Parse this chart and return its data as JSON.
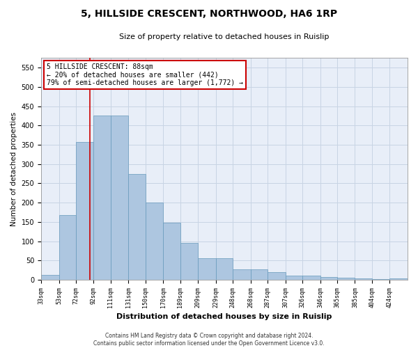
{
  "title": "5, HILLSIDE CRESCENT, NORTHWOOD, HA6 1RP",
  "subtitle": "Size of property relative to detached houses in Ruislip",
  "xlabel": "Distribution of detached houses by size in Ruislip",
  "ylabel": "Number of detached properties",
  "footer_line1": "Contains HM Land Registry data © Crown copyright and database right 2024.",
  "footer_line2": "Contains public sector information licensed under the Open Government Licence v3.0.",
  "categories": [
    "33sqm",
    "53sqm",
    "72sqm",
    "92sqm",
    "111sqm",
    "131sqm",
    "150sqm",
    "170sqm",
    "189sqm",
    "209sqm",
    "229sqm",
    "248sqm",
    "268sqm",
    "287sqm",
    "307sqm",
    "326sqm",
    "346sqm",
    "365sqm",
    "385sqm",
    "404sqm",
    "424sqm"
  ],
  "values": [
    12,
    168,
    357,
    425,
    425,
    275,
    200,
    148,
    96,
    55,
    55,
    27,
    27,
    20,
    11,
    11,
    7,
    5,
    4,
    2,
    4
  ],
  "bar_color": "#adc6e0",
  "bar_edge_color": "#6699bb",
  "grid_color": "#c8d4e4",
  "annotation_line1": "5 HILLSIDE CRESCENT: 88sqm",
  "annotation_line2": "← 20% of detached houses are smaller (442)",
  "annotation_line3": "79% of semi-detached houses are larger (1,772) →",
  "annotation_box_color": "#ffffff",
  "annotation_border_color": "#cc0000",
  "property_line_x": 88,
  "property_line_color": "#cc0000",
  "ylim_max": 575,
  "bin_edges": [
    33,
    53,
    72,
    92,
    111,
    131,
    150,
    170,
    189,
    209,
    229,
    248,
    268,
    287,
    307,
    326,
    346,
    365,
    385,
    404,
    424,
    444
  ],
  "yticks": [
    0,
    50,
    100,
    150,
    200,
    250,
    300,
    350,
    400,
    450,
    500,
    550
  ],
  "bg_color": "#e8eef8"
}
